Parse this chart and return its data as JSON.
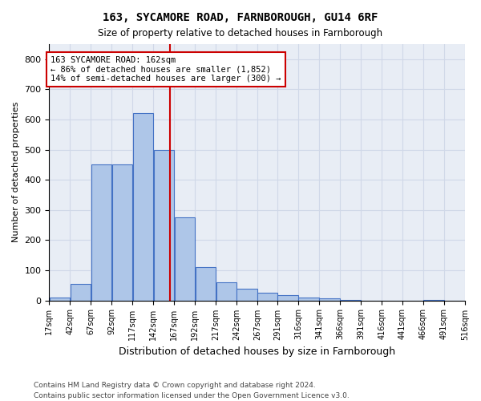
{
  "title": "163, SYCAMORE ROAD, FARNBOROUGH, GU14 6RF",
  "subtitle": "Size of property relative to detached houses in Farnborough",
  "xlabel": "Distribution of detached houses by size in Farnborough",
  "ylabel": "Number of detached properties",
  "footnote1": "Contains HM Land Registry data © Crown copyright and database right 2024.",
  "footnote2": "Contains public sector information licensed under the Open Government Licence v3.0.",
  "property_size": 162,
  "property_label": "163 SYCAMORE ROAD: 162sqm",
  "pct_smaller": "86% of detached houses are smaller (1,852)",
  "pct_larger": "14% of semi-detached houses are larger (300)",
  "bin_edges": [
    17,
    42,
    67,
    92,
    117,
    142,
    167,
    192,
    217,
    242,
    267,
    291,
    316,
    341,
    366,
    391,
    416,
    441,
    466,
    491,
    516
  ],
  "bar_heights": [
    10,
    55,
    450,
    450,
    620,
    500,
    275,
    110,
    60,
    40,
    25,
    18,
    10,
    8,
    2,
    0,
    0,
    0,
    2,
    0,
    0
  ],
  "bar_color": "#aec6e8",
  "bar_edge_color": "#4472c4",
  "vline_color": "#cc0000",
  "vline_x": 162,
  "annotation_box_color": "#cc0000",
  "grid_color": "#d0d8e8",
  "background_color": "#e8edf5",
  "ylim": [
    0,
    850
  ],
  "yticks": [
    0,
    100,
    200,
    300,
    400,
    500,
    600,
    700,
    800
  ],
  "tick_labels": [
    "17sqm",
    "42sqm",
    "67sqm",
    "92sqm",
    "117sqm",
    "142sqm",
    "167sqm",
    "192sqm",
    "217sqm",
    "242sqm",
    "267sqm",
    "291sqm",
    "316sqm",
    "341sqm",
    "366sqm",
    "391sqm",
    "416sqm",
    "441sqm",
    "466sqm",
    "491sqm",
    "516sqm"
  ]
}
